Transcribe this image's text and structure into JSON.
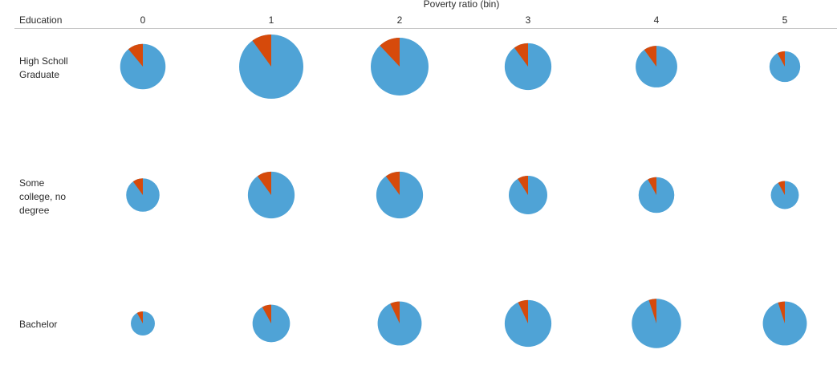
{
  "chart_data": {
    "type": "pie",
    "title": "",
    "column_header": "Poverty ratio (bin)",
    "row_header": "Education",
    "columns": [
      "0",
      "1",
      "2",
      "3",
      "4",
      "5"
    ],
    "rows": [
      {
        "label": "High Scholl Graduate",
        "label_lines": [
          "High Scholl",
          "Graduate"
        ]
      },
      {
        "label": "Some college, no degree",
        "label_lines": [
          "Some",
          "college, no",
          "degree"
        ]
      },
      {
        "label": "Bachelor",
        "label_lines": [
          "Bachelor"
        ]
      }
    ],
    "series_colors": {
      "blue": "#4FA3D6",
      "orange": "#D64A0B"
    },
    "size_note": "pie size encodes a relative total (estimated)",
    "cells": [
      [
        {
          "size": 0.5,
          "orange_fraction": 0.11
        },
        {
          "size": 1.0,
          "orange_fraction": 0.1
        },
        {
          "size": 0.81,
          "orange_fraction": 0.12
        },
        {
          "size": 0.53,
          "orange_fraction": 0.1
        },
        {
          "size": 0.42,
          "orange_fraction": 0.1
        },
        {
          "size": 0.23,
          "orange_fraction": 0.08
        }
      ],
      [
        {
          "size": 0.27,
          "orange_fraction": 0.1
        },
        {
          "size": 0.53,
          "orange_fraction": 0.1
        },
        {
          "size": 0.53,
          "orange_fraction": 0.1
        },
        {
          "size": 0.36,
          "orange_fraction": 0.09
        },
        {
          "size": 0.31,
          "orange_fraction": 0.08
        },
        {
          "size": 0.19,
          "orange_fraction": 0.08
        }
      ],
      [
        {
          "size": 0.14,
          "orange_fraction": 0.08
        },
        {
          "size": 0.34,
          "orange_fraction": 0.08
        },
        {
          "size": 0.47,
          "orange_fraction": 0.07
        },
        {
          "size": 0.53,
          "orange_fraction": 0.07
        },
        {
          "size": 0.59,
          "orange_fraction": 0.05
        },
        {
          "size": 0.47,
          "orange_fraction": 0.05
        }
      ]
    ]
  }
}
